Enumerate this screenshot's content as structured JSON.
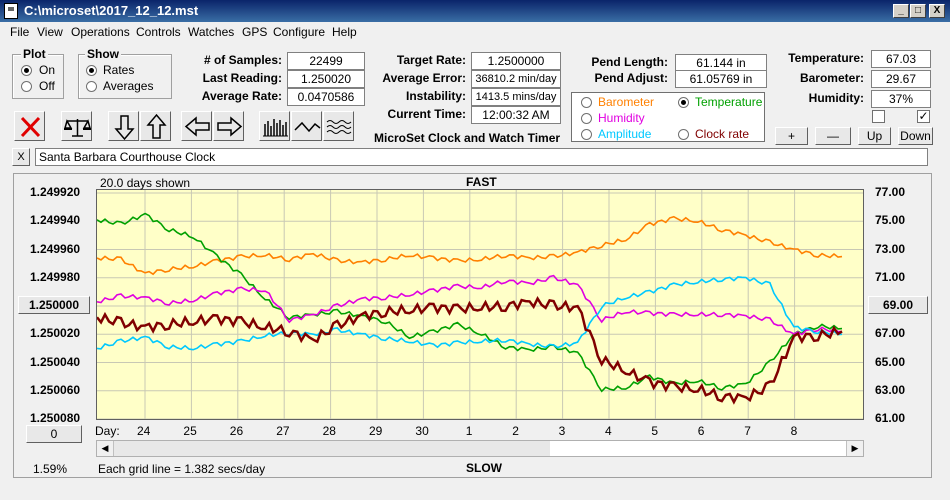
{
  "window": {
    "title": "C:\\microset\\2017_12_12.mst"
  },
  "menu": [
    "File",
    "View",
    "Operations",
    "Controls",
    "Watches",
    "GPS",
    "Configure",
    "Help"
  ],
  "plot_group": {
    "title": "Plot",
    "on": "On",
    "off": "Off",
    "selected": "On"
  },
  "show_group": {
    "title": "Show",
    "rates": "Rates",
    "averages": "Averages",
    "selected": "Rates"
  },
  "stats": {
    "samples_label": "# of Samples:",
    "samples": "22499",
    "last_reading_label": "Last Reading:",
    "last_reading": "1.250020",
    "average_rate_label": "Average Rate:",
    "average_rate": "0.0470586",
    "target_rate_label": "Target Rate:",
    "target_rate": "1.2500000",
    "average_error_label": "Average Error:",
    "average_error": "36810.2 min/day",
    "instability_label": "Instability:",
    "instability": "1413.5 mins/day",
    "current_time_label": "Current Time:",
    "current_time": "12:00:32 AM",
    "pend_length_label": "Pend Length:",
    "pend_length": "61.144 in",
    "pend_adjust_label": "Pend Adjust:",
    "pend_adjust": "61.05769 in",
    "temperature_label": "Temperature:",
    "temperature": "67.03",
    "barometer_label": "Barometer:",
    "barometer": "29.67",
    "humidity_label": "Humidity:",
    "humidity": "37%"
  },
  "app_caption": "MicroSet Clock and Watch Timer",
  "aux_options": [
    {
      "label": "Barometer",
      "color": "#ff8000",
      "selected": false
    },
    {
      "label": "Temperature",
      "color": "#00a000",
      "selected": true
    },
    {
      "label": "Humidity",
      "color": "#e000e0",
      "selected": false
    },
    {
      "label": "Amplitude",
      "color": "#00c8ff",
      "selected": false
    },
    {
      "label": "Clock rate",
      "color": "#800000",
      "selected": false
    }
  ],
  "adjust_buttons": {
    "plus": "+",
    "minus": "—",
    "up": "Up",
    "down": "Down"
  },
  "checkboxes": [
    {
      "checked": false
    },
    {
      "checked": true
    }
  ],
  "clock_name": "Santa Barbara Courthouse Clock",
  "close_x": "X",
  "icons": [
    "reset-icon",
    "balance-icon",
    "arrow-down-icon",
    "arrow-up-icon",
    "arrow-left-icon",
    "arrow-right-icon",
    "bar-graph-icon",
    "wave-graph-icon",
    "waves-icon"
  ],
  "chart_data": {
    "type": "line",
    "days_shown": "20.0 days shown",
    "top_label": "FAST",
    "bottom_label": "SLOW",
    "left_ticks": [
      "1.249920",
      "1.249940",
      "1.249960",
      "1.249980",
      "1.250000",
      "1.250020",
      "1.250040",
      "1.250060",
      "1.250080"
    ],
    "right_ticks": [
      "77.00",
      "75.00",
      "73.00",
      "71.00",
      "69.00",
      "67.00",
      "65.00",
      "63.00",
      "61.00"
    ],
    "left_center_value": "1.250000",
    "right_center_value": "69.00",
    "x_label": "Day:",
    "x_ticks": [
      "24",
      "25",
      "26",
      "27",
      "28",
      "29",
      "30",
      "1",
      "2",
      "3",
      "4",
      "5",
      "6",
      "7",
      "8"
    ],
    "grid_note": "Each grid line = 1.382 secs/day",
    "corner_value": "0",
    "percent": "1.59%",
    "ylim_left": [
      1.25008,
      1.24992
    ],
    "ylim_right": [
      61,
      77
    ],
    "series": [
      {
        "name": "Barometer",
        "color": "#ff8000",
        "x": [
          0,
          0.5,
          1,
          1.5,
          2,
          2.5,
          3,
          3.5,
          4,
          4.5,
          5,
          5.5,
          6,
          6.5,
          7,
          7.5,
          8,
          8.5,
          9,
          9.5,
          10,
          10.5,
          11,
          11.5,
          12,
          12.5,
          13,
          13.5,
          14,
          14.5,
          15,
          15.5
        ],
        "y": [
          72.4,
          72.3,
          71.3,
          71.6,
          71.8,
          72.2,
          72.5,
          72.6,
          72.3,
          72.7,
          72.2,
          72.1,
          72.3,
          72.6,
          72.4,
          72.2,
          72.3,
          72.6,
          72.4,
          72.5,
          72.8,
          73.3,
          73.7,
          74.8,
          75.2,
          75.0,
          74.4,
          74.0,
          73.5,
          73.0,
          72.6,
          72.5
        ]
      },
      {
        "name": "Temperature",
        "color": "#00a000",
        "x": [
          0,
          0.5,
          1,
          1.5,
          2,
          2.5,
          3,
          3.5,
          4,
          4.5,
          5,
          5.5,
          6,
          6.5,
          7,
          7.5,
          8,
          8.5,
          9,
          9.5,
          10,
          10.5,
          11,
          11.5,
          12,
          12.5,
          13,
          13.5,
          14,
          14.5,
          15,
          15.5
        ],
        "y": [
          75.1,
          74.8,
          75.5,
          74.4,
          73.9,
          72.5,
          71.2,
          69.5,
          68.2,
          68.4,
          68.6,
          68.3,
          67.9,
          66.8,
          67.2,
          67.7,
          67.0,
          66.1,
          65.9,
          66.1,
          65.7,
          63.1,
          63.2,
          64.0,
          63.5,
          63.7,
          63.2,
          63.5,
          65.0,
          67.0,
          67.6,
          67.4
        ]
      },
      {
        "name": "Humidity",
        "color": "#e000e0",
        "x": [
          0,
          0.5,
          1,
          1.5,
          2,
          2.5,
          3,
          3.5,
          4,
          4.5,
          5,
          5.5,
          6,
          6.5,
          7,
          7.5,
          8,
          8.5,
          9,
          9.5,
          10,
          10.5,
          11,
          11.5,
          12,
          12.5,
          13,
          13.5,
          14,
          14.5,
          15,
          15.5
        ],
        "y": [
          69.3,
          69.7,
          69.6,
          69.2,
          69.4,
          69.9,
          70.2,
          70.1,
          68.0,
          68.4,
          69.0,
          69.5,
          69.6,
          69.8,
          70.1,
          70.4,
          70.3,
          70.8,
          70.6,
          71.0,
          70.5,
          68.0,
          68.6,
          68.5,
          68.4,
          68.4,
          68.4,
          68.3,
          68.0,
          67.0,
          67.4,
          67.2
        ]
      },
      {
        "name": "Amplitude",
        "color": "#00c8ff",
        "x": [
          0,
          0.5,
          1,
          1.5,
          2,
          2.5,
          3,
          3.5,
          4,
          4.5,
          5,
          5.5,
          6,
          6.5,
          7,
          7.5,
          8,
          8.5,
          9,
          9.5,
          10,
          10.5,
          11,
          11.5,
          12,
          12.5,
          13,
          13.5,
          14,
          14.5,
          15,
          15.5
        ],
        "y": [
          66.0,
          66.5,
          66.8,
          66.1,
          66.0,
          66.3,
          66.5,
          66.9,
          67.1,
          67.0,
          67.3,
          67.0,
          66.7,
          66.5,
          66.2,
          66.4,
          66.5,
          66.6,
          66.3,
          66.1,
          66.4,
          69.0,
          69.6,
          70.0,
          70.5,
          70.7,
          70.9,
          71.0,
          70.5,
          67.5,
          67.2,
          67.0
        ]
      },
      {
        "name": "Clock rate",
        "color": "#800000",
        "x": [
          0,
          0.5,
          1,
          1.5,
          2,
          2.5,
          3,
          3.5,
          4,
          4.5,
          5,
          5.5,
          6,
          6.5,
          7,
          7.5,
          8,
          8.5,
          9,
          9.5,
          10,
          10.5,
          11,
          11.5,
          12,
          12.5,
          13,
          13.5,
          14,
          14.5,
          15,
          15.5
        ],
        "y": [
          68.2,
          67.8,
          67.5,
          67.7,
          67.9,
          68.1,
          67.9,
          67.5,
          67.2,
          66.6,
          67.6,
          68.3,
          68.6,
          68.7,
          68.9,
          68.8,
          68.9,
          69.0,
          69.3,
          69.0,
          68.9,
          65.2,
          64.4,
          63.6,
          63.3,
          63.1,
          62.6,
          62.5,
          63.3,
          66.8,
          66.9,
          67.2
        ]
      }
    ]
  }
}
